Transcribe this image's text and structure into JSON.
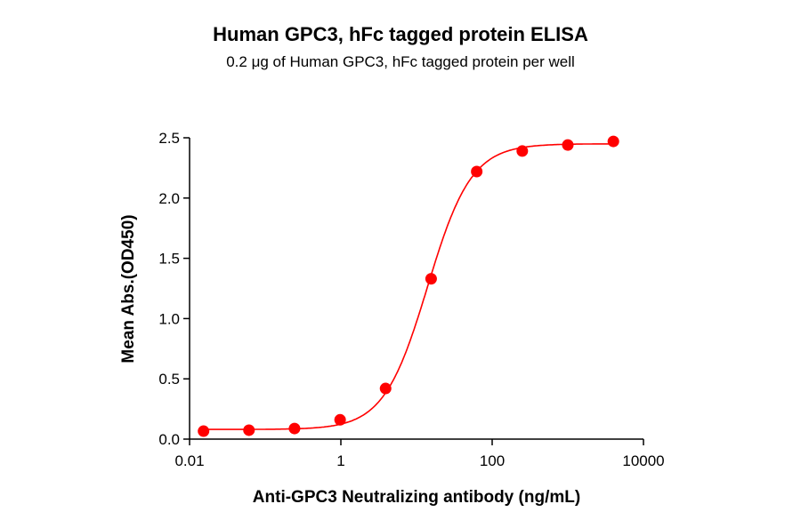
{
  "chart_data": {
    "type": "scatter",
    "title": "Human GPC3, hFc tagged protein ELISA",
    "subtitle": "0.2 μg of Human GPC3, hFc tagged protein per well",
    "xlabel": "Anti-GPC3 Neutralizing antibody (ng/mL)",
    "ylabel": "Mean Abs.(OD450)",
    "xscale": "log",
    "xlim": [
      0.01,
      10000
    ],
    "ylim": [
      0,
      2.5
    ],
    "xticks": [
      "0.01",
      "1",
      "100",
      "10000"
    ],
    "yticks": [
      "0.0",
      "0.5",
      "1.0",
      "1.5",
      "2.0",
      "2.5"
    ],
    "grid": false,
    "color": "#ff0000",
    "x": [
      0.0153,
      0.061,
      0.244,
      0.977,
      3.9,
      15.6,
      62.5,
      250,
      1000,
      4000
    ],
    "y": [
      0.066,
      0.074,
      0.088,
      0.16,
      0.42,
      1.33,
      2.22,
      2.39,
      2.44,
      2.47
    ],
    "fit": {
      "model": "4PL",
      "bottom": 0.08,
      "top": 2.45,
      "ec50": 14,
      "hill": 1.5
    }
  }
}
